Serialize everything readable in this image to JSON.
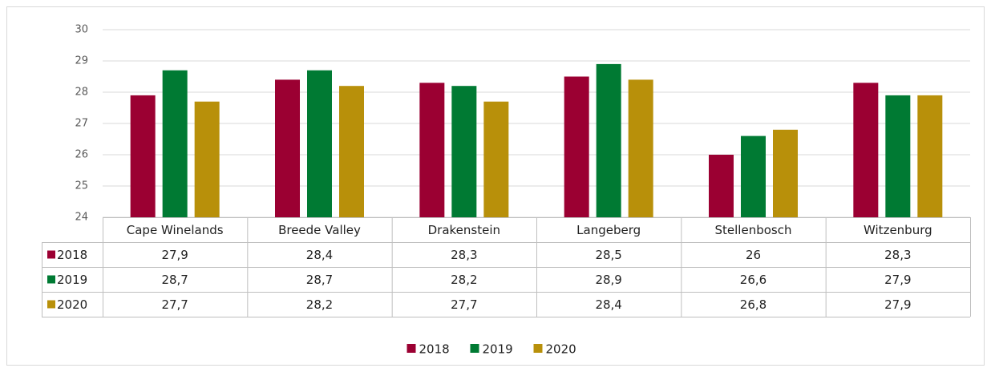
{
  "chart_data": {
    "type": "bar",
    "categories": [
      "Cape Winelands",
      "Breede Valley",
      "Drakenstein",
      "Langeberg",
      "Stellenbosch",
      "Witzenburg"
    ],
    "series": [
      {
        "name": "2018",
        "color": "#9b0032",
        "values": [
          27.9,
          28.4,
          28.3,
          28.5,
          26,
          28.3
        ],
        "value_labels": [
          "27,9",
          "28,4",
          "28,3",
          "28,5",
          "26",
          "28,3"
        ]
      },
      {
        "name": "2019",
        "color": "#007a33",
        "values": [
          28.7,
          28.7,
          28.2,
          28.9,
          26.6,
          27.9
        ],
        "value_labels": [
          "28,7",
          "28,7",
          "28,2",
          "28,9",
          "26,6",
          "27,9"
        ]
      },
      {
        "name": "2020",
        "color": "#b8900a",
        "values": [
          27.7,
          28.2,
          27.7,
          28.4,
          26.8,
          27.9
        ],
        "value_labels": [
          "27,7",
          "28,2",
          "27,7",
          "28,4",
          "26,8",
          "27,9"
        ]
      }
    ],
    "ylim": [
      24,
      30
    ],
    "yticks": [
      24,
      25,
      26,
      27,
      28,
      29,
      30
    ],
    "grid": true,
    "legend": "bottom"
  }
}
